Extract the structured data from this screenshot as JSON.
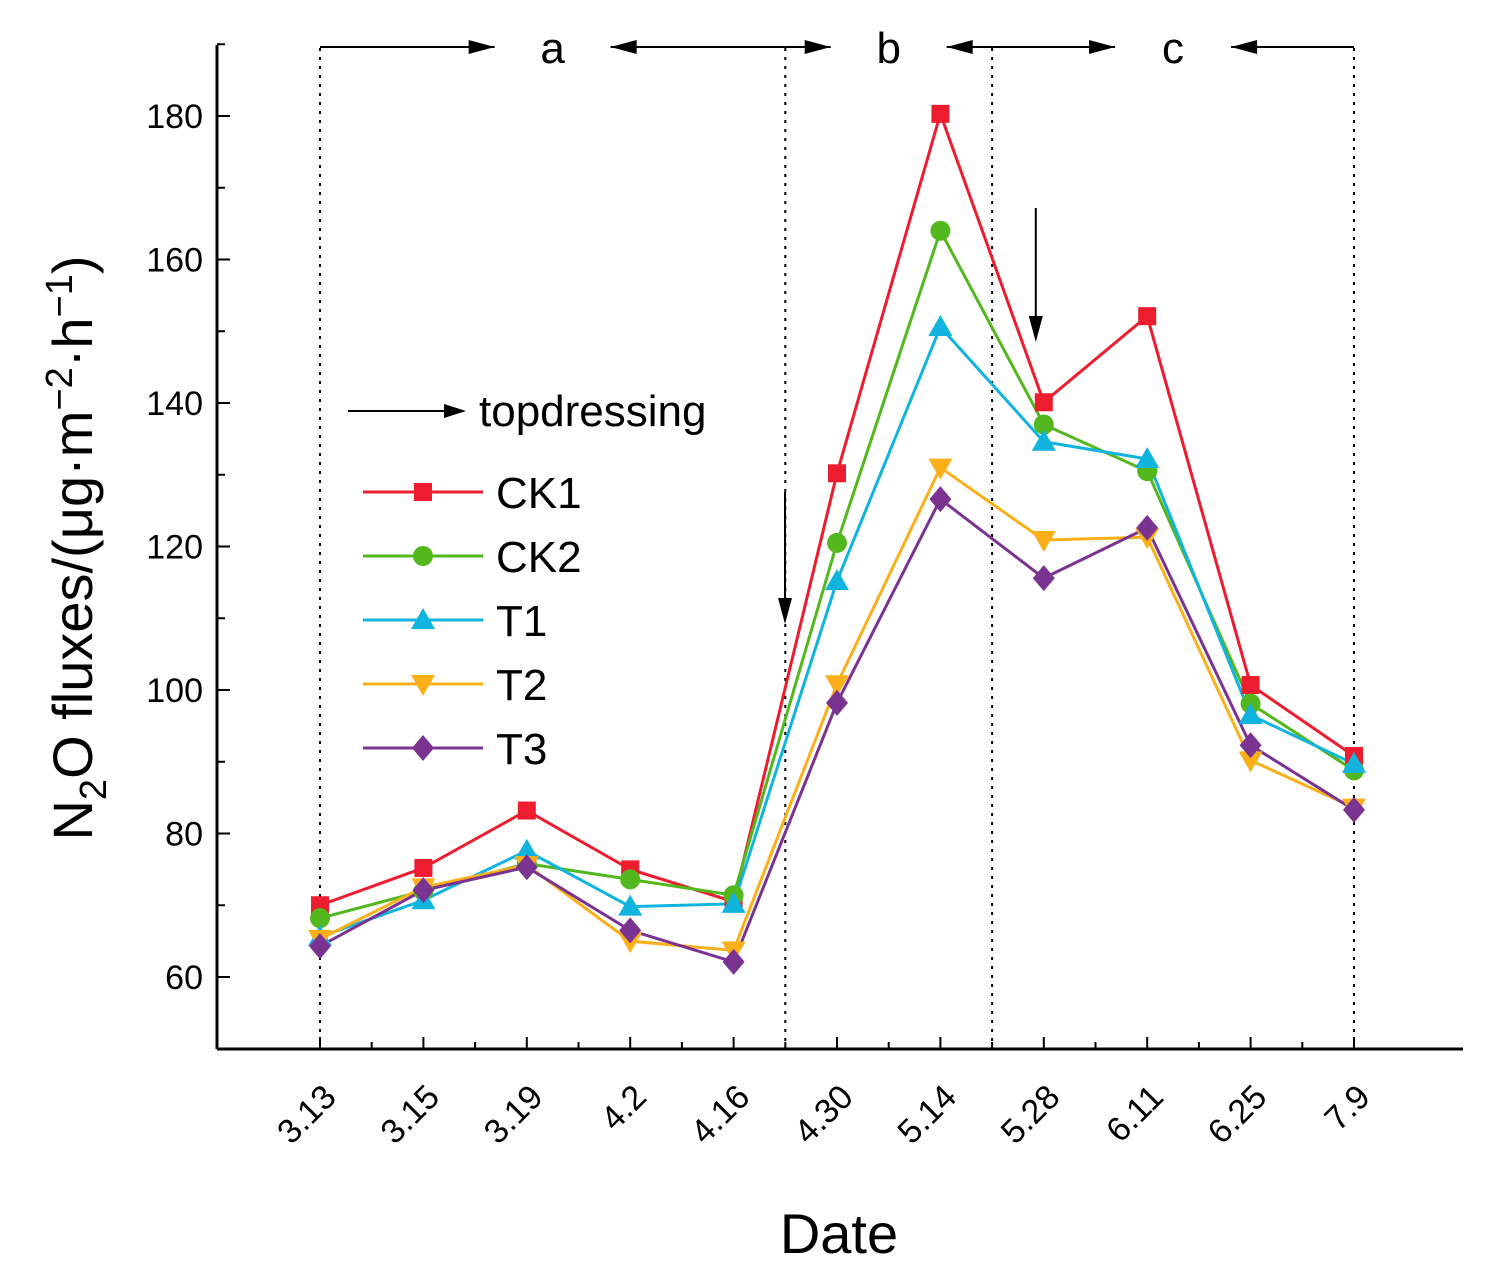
{
  "chart_data": {
    "type": "line",
    "xlabel": "Date",
    "ylabel": {
      "main": "N",
      "sub": "2",
      "rest": "O fluxes/(μg·m",
      "sup1": "−2",
      "mid": "·h",
      "sup2": "−1",
      "end": ")"
    },
    "categories": [
      "3.13",
      "3.15",
      "3.19",
      "4.2",
      "4.16",
      "4.30",
      "5.14",
      "5.28",
      "6.11",
      "6.25",
      "7.9"
    ],
    "y_ticks": [
      "60",
      "80",
      "100",
      "120",
      "140",
      "160",
      "180"
    ],
    "ylim": [
      50,
      190
    ],
    "series": [
      {
        "name": "CK1",
        "color": "#ed1c2e",
        "marker": "square",
        "values": [
          70,
          75.2,
          83.2,
          75,
          70.5,
          130.2,
          180.3,
          140.1,
          152.1,
          100.7,
          90.8
        ]
      },
      {
        "name": "CK2",
        "color": "#52b81e",
        "marker": "circle",
        "values": [
          68.2,
          72,
          75.8,
          73.6,
          71.4,
          120.5,
          164,
          137,
          130.5,
          98.1,
          88.8
        ]
      },
      {
        "name": "T1",
        "color": "#10b4de",
        "marker": "triangle-up",
        "values": [
          65.6,
          70.7,
          77.6,
          69.8,
          70.2,
          115.2,
          150.6,
          134.6,
          132.2,
          96.5,
          89.7
        ]
      },
      {
        "name": "T2",
        "color": "#fbb01a",
        "marker": "triangle-down",
        "values": [
          65.3,
          72.5,
          75.6,
          65,
          63.7,
          100.8,
          131,
          120.9,
          121.3,
          90.2,
          83.6
        ]
      },
      {
        "name": "T3",
        "color": "#7a3391",
        "marker": "diamond",
        "values": [
          64.3,
          72.1,
          75.3,
          66.5,
          62.1,
          98.2,
          126.6,
          115.6,
          122.6,
          92.3,
          83.3
        ]
      }
    ],
    "legend": {
      "position": "upper-left",
      "topdressing_label": "topdressing"
    },
    "phases": [
      {
        "label": "a",
        "from": "3.13",
        "to": "4.16"
      },
      {
        "label": "b",
        "from": "4.16",
        "to": "5.28"
      },
      {
        "label": "c",
        "from": "5.28",
        "to": "7.9"
      }
    ],
    "topdressing_dates": [
      "4.30",
      "5.28"
    ]
  }
}
